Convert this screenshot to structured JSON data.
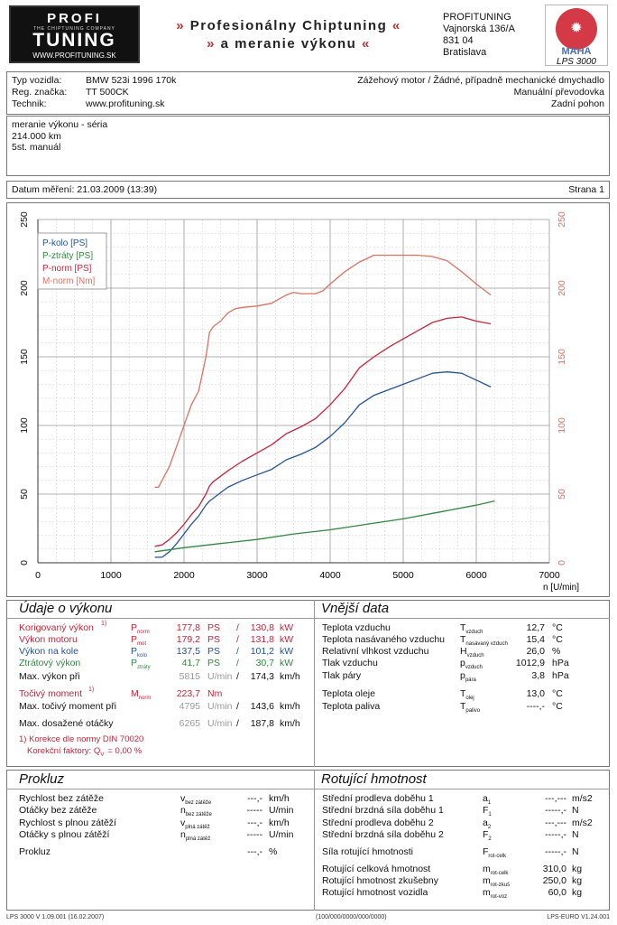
{
  "header": {
    "logo_top": "PROFI",
    "logo_tagline": "THE CHIPTUNING COMPANY",
    "logo_main": "TUNING",
    "logo_url": "WWW.PROFITUNING.SK",
    "title_line1": "Profesionálny Chiptuning",
    "title_line2": "a meranie výkonu",
    "quote_open": "»",
    "quote_close": "«",
    "company": [
      "PROFITUNING",
      "Vajnorská 136/A",
      "831 04",
      "Bratislava"
    ],
    "maha_logo_text": "MAHA",
    "lps": "LPS 3000"
  },
  "vehicle": {
    "labels": [
      "Typ vozidla:",
      "Reg. značka:",
      "Technik:"
    ],
    "values": [
      "BMW 523i 1996 170k",
      "TT 500CK",
      "www.profituning.sk"
    ],
    "right": [
      "Zážehový motor / Žádné, případně mechanické dmychadlo",
      "Manuální převodovka",
      "Zadní pohon"
    ]
  },
  "notes": [
    "meranie výkonu - séria",
    "214.000 km",
    "5st. manuál"
  ],
  "date_line": "Datum měření: 21.03.2009 (13:39)",
  "page_label": "Strana 1",
  "chart_data": {
    "type": "line",
    "title": "",
    "xlabel": "n [U/min]",
    "ylabel": "",
    "xlim": [
      0,
      7000
    ],
    "ylim_left": [
      0,
      250
    ],
    "ylim_right": [
      0,
      250
    ],
    "x_ticks": [
      "0",
      "1000",
      "2000",
      "3000",
      "4000",
      "5000",
      "6000",
      "7000"
    ],
    "y_ticks": [
      "0",
      "50",
      "100",
      "150",
      "200",
      "250"
    ],
    "grid": true,
    "legend": "top-left",
    "series": [
      {
        "name": "P-kolo [PS]",
        "color": "#24539b",
        "axis": "left",
        "x": [
          1600,
          1700,
          1800,
          1900,
          2000,
          2100,
          2200,
          2300,
          2350,
          2400,
          2500,
          2600,
          2800,
          3000,
          3200,
          3400,
          3600,
          3800,
          4000,
          4200,
          4400,
          4600,
          4800,
          5000,
          5200,
          5400,
          5600,
          5800,
          6000,
          6200
        ],
        "y": [
          4,
          4,
          8,
          14,
          21,
          28,
          34,
          42,
          45,
          47,
          51,
          55,
          60,
          64,
          68,
          75,
          79,
          84,
          92,
          102,
          115,
          122,
          126,
          130,
          134,
          138,
          139,
          138,
          133,
          128
        ]
      },
      {
        "name": "P-ztráty [PS]",
        "color": "#2f8a3f",
        "axis": "left",
        "x": [
          1600,
          2000,
          2500,
          3000,
          3500,
          4000,
          4500,
          5000,
          5500,
          6000,
          6250
        ],
        "y": [
          8,
          11,
          14,
          17,
          21,
          24,
          28,
          32,
          37,
          42,
          45
        ]
      },
      {
        "name": "P-norm [PS]",
        "color": "#c8243a",
        "axis": "left",
        "x": [
          1600,
          1700,
          1800,
          1900,
          2000,
          2100,
          2200,
          2300,
          2350,
          2400,
          2500,
          2600,
          2800,
          3000,
          3200,
          3400,
          3600,
          3800,
          4000,
          4200,
          4400,
          4600,
          4800,
          5000,
          5200,
          5400,
          5600,
          5800,
          6000,
          6200
        ],
        "y": [
          12,
          13,
          17,
          22,
          28,
          35,
          41,
          50,
          56,
          59,
          63,
          67,
          74,
          80,
          86,
          94,
          99,
          105,
          115,
          127,
          142,
          150,
          157,
          163,
          169,
          175,
          178,
          179,
          176,
          174
        ]
      },
      {
        "name": "M-norm [Nm]",
        "color": "#e07060",
        "axis": "right",
        "x": [
          1600,
          1650,
          1700,
          1800,
          1900,
          2000,
          2100,
          2200,
          2300,
          2350,
          2400,
          2500,
          2600,
          2700,
          2800,
          3000,
          3200,
          3400,
          3500,
          3600,
          3800,
          3900,
          4000,
          4200,
          4400,
          4600,
          4800,
          5000,
          5200,
          5400,
          5600,
          5800,
          6000,
          6200
        ],
        "y": [
          55,
          55,
          60,
          70,
          85,
          100,
          115,
          125,
          150,
          168,
          172,
          176,
          182,
          185,
          186,
          187,
          189,
          195,
          197,
          196,
          196,
          198,
          203,
          212,
          219,
          224,
          224,
          224,
          224,
          223,
          220,
          212,
          203,
          195
        ]
      }
    ]
  },
  "udaje": {
    "title": "Údaje o výkonu",
    "rows": [
      {
        "label": "Korigovaný výkon",
        "sup": "1)",
        "sym": "P",
        "sub": "norm",
        "v1": "177,8",
        "u1": "PS",
        "sep": "/",
        "v2": "130,8",
        "u2": "kW",
        "cls": "red"
      },
      {
        "label": "Výkon motoru",
        "sup": "",
        "sym": "P",
        "sub": "mot",
        "v1": "179,2",
        "u1": "PS",
        "sep": "/",
        "v2": "131,8",
        "u2": "kW",
        "cls": "red"
      },
      {
        "label": "Výkon na kole",
        "sup": "",
        "sym": "P",
        "sub": "kolo",
        "v1": "137,5",
        "u1": "PS",
        "sep": "/",
        "v2": "101,2",
        "u2": "kW",
        "cls": "blue"
      },
      {
        "label": "Ztrátový výkon",
        "sup": "",
        "sym": "P",
        "sub": "ztráty",
        "v1": "41,7",
        "u1": "PS",
        "sep": "/",
        "v2": "30,7",
        "u2": "kW",
        "cls": "green"
      }
    ],
    "max_power": {
      "label": "Max. výkon při",
      "rpm": "5815",
      "rpm_unit": "U/min",
      "sep": "/",
      "speed": "174,3",
      "speed_unit": "km/h"
    },
    "torque": {
      "label": "Točivý moment",
      "sup": "1)",
      "sym": "M",
      "sub": "norm",
      "v": "223,7",
      "u": "Nm"
    },
    "max_torque": {
      "label": "Max. točivý moment při",
      "rpm": "4795",
      "rpm_unit": "U/min",
      "sep": "/",
      "speed": "143,6",
      "speed_unit": "km/h"
    },
    "max_rpm": {
      "label": "Max. dosažené otáčky",
      "rpm": "6265",
      "rpm_unit": "U/min",
      "sep": "/",
      "speed": "187,8",
      "speed_unit": "km/h"
    },
    "note1": "1) Korekce dle normy DIN 70020",
    "note2": "Korekční faktory: Q",
    "note2_sub": "V",
    "note2_val": "=   0,00 %"
  },
  "vnejsi": {
    "title": "Vnější data",
    "rows": [
      {
        "label": "Teplota vzduchu",
        "sym": "T",
        "sub": "vzduch",
        "val": "12,7",
        "unit": "°C"
      },
      {
        "label": "Teplota nasávaného vzduchu",
        "sym": "T",
        "sub": "nasávaný vzduch",
        "val": "15,4",
        "unit": "°C"
      },
      {
        "label": "Relativní vlhkost vzduchu",
        "sym": "H",
        "sub": "vzduch",
        "val": "26,0",
        "unit": "%"
      },
      {
        "label": "Tlak vzduchu",
        "sym": "p",
        "sub": "vzduch",
        "val": "1012,9",
        "unit": "hPa"
      },
      {
        "label": "Tlak páry",
        "sym": "p",
        "sub": "pára",
        "val": "3,8",
        "unit": "hPa"
      },
      {
        "label": "Teplota oleje",
        "sym": "T",
        "sub": "olej",
        "val": "13,0",
        "unit": "°C"
      },
      {
        "label": "Teplota paliva",
        "sym": "T",
        "sub": "palivo",
        "val": "----,-",
        "unit": "°C"
      }
    ]
  },
  "prokluz": {
    "title": "Prokluz",
    "rows": [
      {
        "label": "Rychlost bez zátěže",
        "sym": "v",
        "sub": "bez zátěže",
        "val": "---,-",
        "unit": "km/h"
      },
      {
        "label": "Otáčky bez zátěže",
        "sym": "n",
        "sub": "bez zátěže",
        "val": "-----",
        "unit": "U/min"
      },
      {
        "label": "Rychlost s plnou zátěží",
        "sym": "v",
        "sub": "plná zátěž",
        "val": "---,-",
        "unit": "km/h"
      },
      {
        "label": "Otáčky s plnou zátěží",
        "sym": "n",
        "sub": "plná zátěž",
        "val": "-----",
        "unit": "U/min"
      },
      {
        "label": "Prokluz",
        "sym": "",
        "sub": "",
        "val": "---,-",
        "unit": "%"
      }
    ]
  },
  "rotujici": {
    "title": "Rotující hmotnost",
    "rows": [
      {
        "label": "Střední prodleva doběhu 1",
        "sym": "a",
        "sub": "1",
        "val": "---,---",
        "unit": "m/s2"
      },
      {
        "label": "Střední brzdná síla doběhu 1",
        "sym": "F",
        "sub": "1",
        "val": "-----,-",
        "unit": "N"
      },
      {
        "label": "Střední prodleva doběhu 2",
        "sym": "a",
        "sub": "2",
        "val": "---,---",
        "unit": "m/s2"
      },
      {
        "label": "Střední brzdná síla doběhu 2",
        "sym": "F",
        "sub": "2",
        "val": "-----,-",
        "unit": "N"
      },
      {
        "label": "Síla rotující hmotnosti",
        "sym": "F",
        "sub": "rot-celk",
        "val": "-----,-",
        "unit": "N"
      },
      {
        "label": "Rotující celková hmotnost",
        "sym": "m",
        "sub": "rot-celk",
        "val": "310,0",
        "unit": "kg"
      },
      {
        "label": "Rotující hmotnost zkušebny",
        "sym": "m",
        "sub": "rot-zkuš",
        "val": "250,0",
        "unit": "kg"
      },
      {
        "label": "Rotující hmotnost vozidla",
        "sym": "m",
        "sub": "rot-voz",
        "val": "60,0",
        "unit": "kg"
      }
    ]
  },
  "footer": {
    "left": "LPS 3000 V 1.09.001 (16.02.2007)",
    "center": "(100/000/0000/000/0000)",
    "right": "LPS-EURO V1.24.001"
  }
}
